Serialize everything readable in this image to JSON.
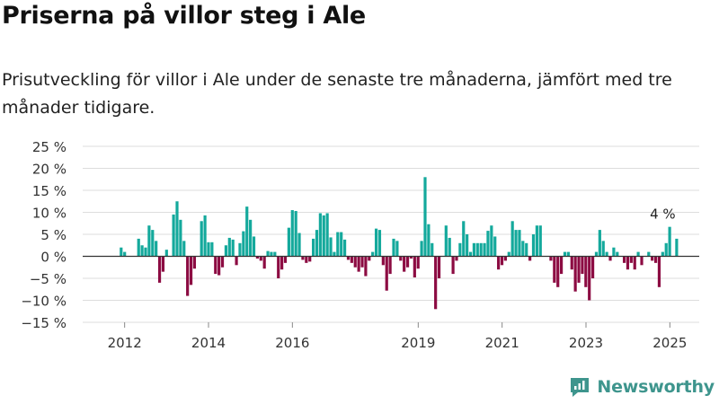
{
  "header": {
    "title": "Priserna på villor steg i Ale",
    "subtitle": "Prisutveckling för villor i Ale under de senaste tre månaderna, jämfört med tre månader tidigare."
  },
  "brand": {
    "name": "Newsworthy"
  },
  "colors": {
    "positive": "#14a99c",
    "negative": "#8c0b42",
    "grid": "#dddddd",
    "zero": "#333333",
    "brand": "#3e958d"
  },
  "chart_data": {
    "type": "bar",
    "ylim": [
      -15,
      25
    ],
    "xlim": [
      2011.0,
      2025.7
    ],
    "y_ticks": [
      {
        "value": 25,
        "label": "25 %"
      },
      {
        "value": 20,
        "label": "20 %"
      },
      {
        "value": 15,
        "label": "15 %"
      },
      {
        "value": 10,
        "label": "10 %"
      },
      {
        "value": 5,
        "label": "5 %"
      },
      {
        "value": 0,
        "label": "0 %"
      },
      {
        "value": -5,
        "label": "−5 %"
      },
      {
        "value": -10,
        "label": "−10 %"
      },
      {
        "value": -15,
        "label": "−15 %"
      }
    ],
    "x_ticks": [
      {
        "value": 2012,
        "label": "2012"
      },
      {
        "value": 2014,
        "label": "2014"
      },
      {
        "value": 2016,
        "label": "2016"
      },
      {
        "value": 2019,
        "label": "2019"
      },
      {
        "value": 2021,
        "label": "2021"
      },
      {
        "value": 2023,
        "label": "2023"
      },
      {
        "value": 2025,
        "label": "2025"
      }
    ],
    "annotation": {
      "label": "4 %",
      "x": 2024.83,
      "y": 4
    },
    "start": 2011.917,
    "step": 0.0833,
    "values": [
      2,
      1,
      0,
      0,
      0,
      4,
      2.5,
      2,
      7,
      6,
      3.5,
      -6,
      -3.5,
      1.5,
      0,
      9.5,
      12.5,
      8.3,
      3.5,
      -9,
      -6.5,
      -2.8,
      0,
      8,
      9.3,
      3.2,
      3.2,
      -4,
      -4.3,
      -2.5,
      2.5,
      4.2,
      3.8,
      -2,
      3,
      5.7,
      11.3,
      8.3,
      4.5,
      -0.5,
      -1,
      -2.8,
      1.2,
      1,
      1,
      -5,
      -3,
      -1.5,
      6.5,
      10.5,
      10.3,
      5.3,
      -0.8,
      -1.5,
      -1.2,
      4,
      6,
      9.8,
      9.3,
      9.8,
      4.3,
      1,
      5.5,
      5.5,
      3.8,
      -0.8,
      -1.5,
      -2.5,
      -3.5,
      -2.5,
      -4.5,
      -1,
      1,
      6.3,
      6,
      -2,
      -7.8,
      -4,
      4,
      3.5,
      -1,
      -3.5,
      -2.5,
      -0.5,
      -4.8,
      -2.8,
      3.5,
      18,
      7.3,
      3,
      -12,
      -5,
      0,
      7,
      4.2,
      -4,
      -1,
      3,
      8,
      5,
      1,
      3,
      3,
      3,
      3,
      5.8,
      7,
      4.5,
      -3,
      -2,
      -1,
      1,
      8,
      6,
      6,
      3.5,
      3,
      -1,
      5,
      7,
      7,
      0,
      0,
      -1,
      -6,
      -7,
      -4,
      1,
      1,
      -3,
      -8,
      -6,
      -4,
      -7,
      -10,
      -5,
      1,
      6,
      3.5,
      1,
      -1,
      2,
      1,
      0,
      -1.5,
      -3,
      -1.5,
      -3,
      1,
      -2,
      0,
      1,
      -1,
      -1.5,
      -7,
      1,
      3,
      6.7,
      0,
      4
    ]
  }
}
